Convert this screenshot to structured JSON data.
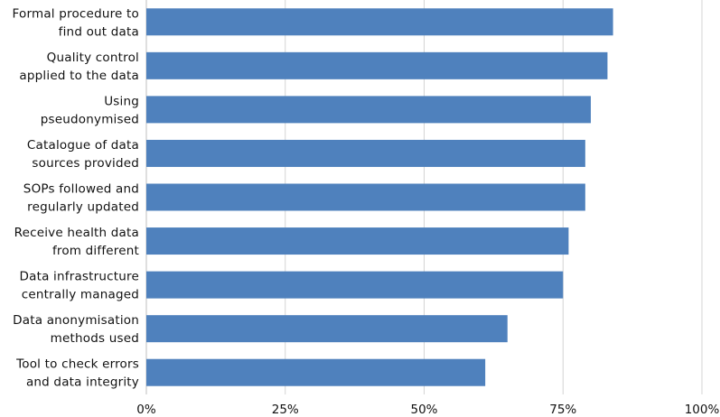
{
  "chart_data": {
    "type": "bar",
    "orientation": "horizontal",
    "categories": [
      [
        "Formal procedure to",
        "find out data"
      ],
      [
        "Quality control",
        "applied to the data"
      ],
      [
        "Using",
        "pseudonymised"
      ],
      [
        "Catalogue of data",
        "sources provided"
      ],
      [
        "SOPs followed and",
        "regularly updated"
      ],
      [
        "Receive health data",
        "from different"
      ],
      [
        "Data infrastructure",
        "centrally managed"
      ],
      [
        "Data anonymisation",
        "methods used"
      ],
      [
        "Tool to check errors",
        "and data integrity"
      ]
    ],
    "values": [
      84,
      83,
      80,
      79,
      79,
      76,
      75,
      65,
      61
    ],
    "xlim": [
      0,
      100
    ],
    "xticks": [
      0,
      25,
      50,
      75,
      100
    ],
    "xtick_labels": [
      "0%",
      "25%",
      "50%",
      "75%",
      "100%"
    ],
    "grid": "vertical",
    "legend": "none",
    "bar_color": "#4f81bd"
  }
}
